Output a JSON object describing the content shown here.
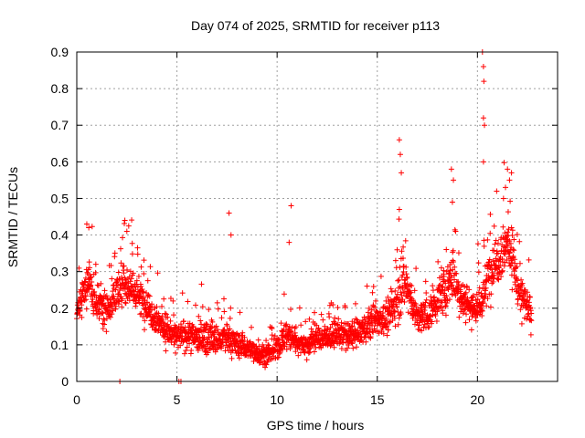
{
  "chart_data": {
    "type": "scatter",
    "title": "Day 074 of 2025, SRMTID for receiver p113",
    "xlabel": "GPS time / hours",
    "ylabel": "SRMTID / TECUs",
    "xlim": [
      0,
      24
    ],
    "ylim": [
      0,
      0.9
    ],
    "xticks": [
      0,
      5,
      10,
      15,
      20
    ],
    "xtick_labels": [
      "0",
      "5",
      "10",
      "15",
      "20"
    ],
    "yticks": [
      0,
      0.1,
      0.2,
      0.3,
      0.4,
      0.5,
      0.6,
      0.7,
      0.8,
      0.9
    ],
    "ytick_labels": [
      "0",
      "0.1",
      "0.2",
      "0.3",
      "0.4",
      "0.5",
      "0.6",
      "0.7",
      "0.8",
      "0.9"
    ],
    "grid": true,
    "marker": "+",
    "color": "#ff0000",
    "profile": {
      "x": [
        0,
        0.3,
        0.6,
        1.0,
        1.5,
        2.0,
        2.5,
        3.0,
        3.5,
        4.0,
        4.5,
        5.0,
        5.5,
        6.0,
        6.5,
        7.0,
        7.5,
        8.0,
        8.5,
        9.0,
        9.5,
        10.0,
        10.5,
        11.0,
        11.5,
        12.0,
        12.5,
        13.0,
        13.5,
        14.0,
        14.5,
        15.0,
        15.5,
        16.0,
        16.3,
        16.6,
        17.0,
        17.5,
        18.0,
        18.5,
        18.8,
        19.0,
        19.5,
        20.0,
        20.3,
        20.6,
        21.0,
        21.5,
        21.8,
        22.0,
        22.4,
        22.7
      ],
      "y": [
        0.18,
        0.24,
        0.27,
        0.22,
        0.2,
        0.24,
        0.27,
        0.24,
        0.21,
        0.17,
        0.14,
        0.12,
        0.13,
        0.12,
        0.12,
        0.11,
        0.12,
        0.1,
        0.09,
        0.08,
        0.07,
        0.09,
        0.13,
        0.11,
        0.1,
        0.12,
        0.12,
        0.13,
        0.12,
        0.13,
        0.15,
        0.17,
        0.17,
        0.22,
        0.28,
        0.24,
        0.17,
        0.18,
        0.22,
        0.26,
        0.3,
        0.25,
        0.21,
        0.2,
        0.23,
        0.3,
        0.34,
        0.38,
        0.34,
        0.25,
        0.21,
        0.18
      ],
      "spread": [
        0.05,
        0.07,
        0.07,
        0.06,
        0.06,
        0.06,
        0.07,
        0.06,
        0.06,
        0.05,
        0.05,
        0.04,
        0.05,
        0.05,
        0.05,
        0.05,
        0.05,
        0.04,
        0.04,
        0.03,
        0.03,
        0.04,
        0.05,
        0.04,
        0.04,
        0.04,
        0.04,
        0.04,
        0.04,
        0.04,
        0.05,
        0.05,
        0.05,
        0.07,
        0.08,
        0.07,
        0.05,
        0.05,
        0.06,
        0.07,
        0.08,
        0.07,
        0.06,
        0.06,
        0.07,
        0.08,
        0.09,
        0.09,
        0.08,
        0.07,
        0.06,
        0.05
      ],
      "density_per_hour": 100,
      "t_end": 22.7
    },
    "spikes": [
      {
        "x": 0.5,
        "y": 0.43
      },
      {
        "x": 0.6,
        "y": 0.42
      },
      {
        "x": 2.4,
        "y": 0.44
      },
      {
        "x": 2.5,
        "y": 0.41
      },
      {
        "x": 7.6,
        "y": 0.46
      },
      {
        "x": 7.7,
        "y": 0.4
      },
      {
        "x": 10.7,
        "y": 0.48
      },
      {
        "x": 10.6,
        "y": 0.38
      },
      {
        "x": 16.1,
        "y": 0.66
      },
      {
        "x": 16.15,
        "y": 0.62
      },
      {
        "x": 16.2,
        "y": 0.57
      },
      {
        "x": 16.1,
        "y": 0.47
      },
      {
        "x": 18.7,
        "y": 0.58
      },
      {
        "x": 18.8,
        "y": 0.55
      },
      {
        "x": 18.75,
        "y": 0.49
      },
      {
        "x": 20.25,
        "y": 0.9
      },
      {
        "x": 20.3,
        "y": 0.86
      },
      {
        "x": 20.32,
        "y": 0.82
      },
      {
        "x": 20.3,
        "y": 0.72
      },
      {
        "x": 20.35,
        "y": 0.7
      },
      {
        "x": 20.3,
        "y": 0.6
      },
      {
        "x": 21.5,
        "y": 0.58
      },
      {
        "x": 21.7,
        "y": 0.57
      },
      {
        "x": 21.6,
        "y": 0.55
      },
      {
        "x": 21.4,
        "y": 0.53
      },
      {
        "x": 21.3,
        "y": 0.5
      }
    ],
    "zero_points": [
      {
        "x": 2.15,
        "y": 0.0
      },
      {
        "x": 5.1,
        "y": 0.0
      },
      {
        "x": 5.2,
        "y": 0.0
      }
    ]
  }
}
